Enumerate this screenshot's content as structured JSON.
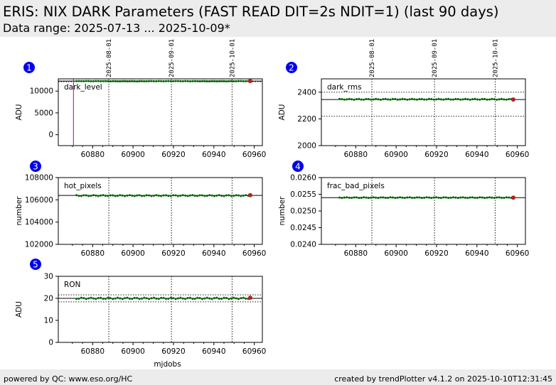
{
  "header": {
    "title": "ERIS: NIX DARK Parameters (FAST READ DIT=2s NDIT=1) (last 90 days)",
    "subtitle": "Data range: 2025-07-13 ... 2025-10-09*"
  },
  "footer": {
    "left": "powered by QC: www.eso.org/HC",
    "right": "created by trendPlotter v4.1.2 on 2025-10-10T12:31:45"
  },
  "colors": {
    "points": "#006400",
    "last_point": "#b22222",
    "marker_circle": "#0000ee",
    "outlier_line": "#aa00aa",
    "frame": "#000000"
  },
  "chart_data": [
    {
      "id": "1",
      "type": "scatter",
      "title": "dark_level",
      "ylabel": "ADU",
      "xlabel": "",
      "xlim": [
        60863,
        60964
      ],
      "ylim": [
        -2500,
        12800
      ],
      "yticks": [
        0,
        5000,
        10000
      ],
      "xticks": [
        60880,
        60900,
        60920,
        60940,
        60960
      ],
      "date_markers": [
        {
          "label": "2025-08-01",
          "x": 60888
        },
        {
          "label": "2025-09-01",
          "x": 60919
        },
        {
          "label": "2025-10-01",
          "x": 60949
        }
      ],
      "ref_lines": [
        12300,
        12150
      ],
      "ref_styles": [
        "solid",
        "dotted"
      ],
      "outlier_lines": [
        60870.5
      ],
      "x_start": 60872,
      "x_end": 60957,
      "n_points": 72,
      "y_mean": 12270,
      "y_amp": 30,
      "last_point": [
        60958,
        12300
      ],
      "show_date_labels": true
    },
    {
      "id": "2",
      "type": "scatter",
      "title": "dark_rms",
      "ylabel": "ADU",
      "xlabel": "",
      "xlim": [
        60863,
        60964
      ],
      "ylim": [
        2000,
        2500
      ],
      "yticks": [
        2000,
        2200,
        2400
      ],
      "xticks": [
        60880,
        60900,
        60920,
        60940,
        60960
      ],
      "date_markers": [
        {
          "label": "2025-08-01",
          "x": 60888
        },
        {
          "label": "2025-09-01",
          "x": 60919
        },
        {
          "label": "2025-10-01",
          "x": 60949
        }
      ],
      "ref_lines": [
        2345,
        2400,
        2220
      ],
      "ref_styles": [
        "solid",
        "dotted",
        "dotted"
      ],
      "outlier_lines": [],
      "x_start": 60872,
      "x_end": 60957,
      "n_points": 72,
      "y_mean": 2347,
      "y_amp": 3,
      "last_point": [
        60958,
        2345
      ],
      "show_date_labels": true
    },
    {
      "id": "3",
      "type": "scatter",
      "title": "hot_pixels",
      "ylabel": "number",
      "xlabel": "",
      "xlim": [
        60863,
        60964
      ],
      "ylim": [
        102000,
        108000
      ],
      "yticks": [
        102000,
        104000,
        106000,
        108000
      ],
      "xticks": [
        60880,
        60900,
        60920,
        60940,
        60960
      ],
      "date_markers": [
        {
          "label": "2025-08-01",
          "x": 60888
        },
        {
          "label": "2025-09-01",
          "x": 60919
        },
        {
          "label": "2025-10-01",
          "x": 60949
        }
      ],
      "ref_lines": [
        106400
      ],
      "ref_styles": [
        "solid"
      ],
      "outlier_lines": [],
      "x_start": 60872,
      "x_end": 60957,
      "n_points": 72,
      "y_mean": 106380,
      "y_amp": 40,
      "last_point": [
        60958,
        106420
      ],
      "show_date_labels": false
    },
    {
      "id": "4",
      "type": "scatter",
      "title": "frac_bad_pixels",
      "ylabel": "number",
      "xlabel": "",
      "xlim": [
        60863,
        60964
      ],
      "ylim": [
        0.024,
        0.026
      ],
      "yticks": [
        0.024,
        0.0245,
        0.025,
        0.0255,
        0.026
      ],
      "xticks": [
        60880,
        60900,
        60920,
        60940,
        60960
      ],
      "date_markers": [
        {
          "label": "2025-08-01",
          "x": 60888
        },
        {
          "label": "2025-09-01",
          "x": 60919
        },
        {
          "label": "2025-10-01",
          "x": 60949
        }
      ],
      "ref_lines": [
        0.0254
      ],
      "ref_styles": [
        "solid"
      ],
      "outlier_lines": [],
      "x_start": 60872,
      "x_end": 60957,
      "n_points": 72,
      "y_mean": 0.0254,
      "y_amp": 1e-05,
      "last_point": [
        60958,
        0.0254
      ],
      "show_date_labels": false
    },
    {
      "id": "5",
      "type": "scatter",
      "title": "RON",
      "ylabel": "ADU",
      "xlabel": "mjdobs",
      "xlim": [
        60863,
        60964
      ],
      "ylim": [
        0,
        30
      ],
      "yticks": [
        0,
        10,
        20,
        30
      ],
      "xticks": [
        60880,
        60900,
        60920,
        60940,
        60960
      ],
      "date_markers": [
        {
          "label": "2025-08-01",
          "x": 60888
        },
        {
          "label": "2025-09-01",
          "x": 60919
        },
        {
          "label": "2025-10-01",
          "x": 60949
        }
      ],
      "ref_lines": [
        20.0,
        21.6,
        18.4
      ],
      "ref_styles": [
        "solid",
        "dotted",
        "dotted"
      ],
      "outlier_lines": [],
      "x_start": 60872,
      "x_end": 60957,
      "n_points": 72,
      "y_mean": 20.0,
      "y_amp": 0.3,
      "last_point": [
        60958,
        20.3
      ],
      "show_date_labels": false
    }
  ]
}
